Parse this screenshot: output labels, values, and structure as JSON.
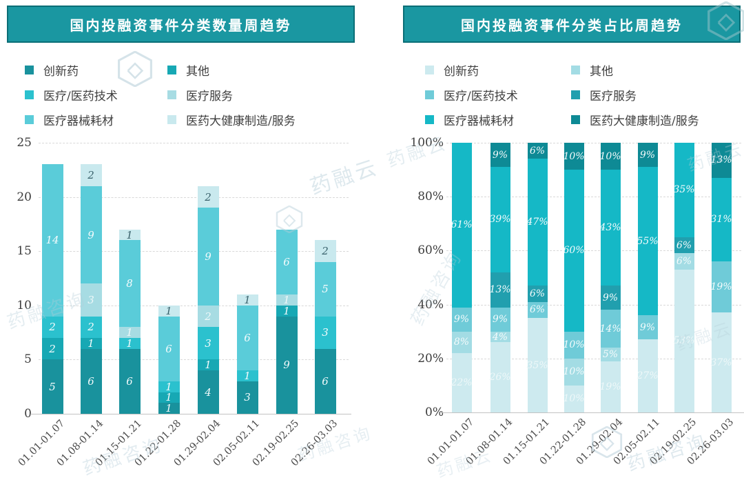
{
  "watermark": {
    "brand": "药融云",
    "consult": "药融咨询"
  },
  "chart_data": [
    {
      "type": "bar",
      "subtype": "stacked",
      "title": "国内投融资事件分类数量周趋势",
      "xlabel": "",
      "ylabel": "",
      "y_max": 25,
      "grid": "dashed-horizontal",
      "legend_position": "top",
      "y_ticks": [
        {
          "label": "0",
          "value": 0
        },
        {
          "label": "5",
          "value": 5
        },
        {
          "label": "10",
          "value": 10
        },
        {
          "label": "15",
          "value": 15
        },
        {
          "label": "20",
          "value": 20
        },
        {
          "label": "25",
          "value": 25
        }
      ],
      "categories": [
        "01.01-01.07",
        "01.08-01.14",
        "01.15-01.21",
        "01.22-01.28",
        "01.29-02.04",
        "02.05-02.11",
        "02.19-02.25",
        "02.26-03.03"
      ],
      "label_suffix": "",
      "series": [
        {
          "name": "创新药",
          "color": "#19929d",
          "label_color": "#f4fbfc",
          "values": [
            5,
            6,
            6,
            1,
            4,
            3,
            9,
            6
          ]
        },
        {
          "name": "其他",
          "color": "#17a8b4",
          "label_color": "#f4fbfc",
          "values": [
            2,
            1,
            0,
            1,
            1,
            0,
            1,
            0
          ]
        },
        {
          "name": "医疗/医药技术",
          "color": "#2bc1ce",
          "label_color": "#f4fbfc",
          "values": [
            2,
            2,
            1,
            1,
            3,
            1,
            0,
            3
          ]
        },
        {
          "name": "医疗服务",
          "color": "#a7dce3",
          "label_color": "#eef8f9",
          "values": [
            0,
            3,
            1,
            0,
            2,
            0,
            1,
            0
          ]
        },
        {
          "name": "医疗器械耗材",
          "color": "#5accd9",
          "label_color": "#f4fbfc",
          "values": [
            14,
            9,
            8,
            6,
            9,
            6,
            6,
            5
          ]
        },
        {
          "name": "医药大健康制造/服务",
          "color": "#c9e9ee",
          "label_color": "#3a626c",
          "values": [
            0,
            2,
            1,
            1,
            2,
            1,
            0,
            2
          ]
        }
      ]
    },
    {
      "type": "bar",
      "subtype": "stacked-percent",
      "title": "国内投融资事件分类占比周趋势",
      "xlabel": "",
      "ylabel": "",
      "y_max": 100,
      "grid": "dashed-horizontal",
      "legend_position": "top",
      "y_ticks": [
        {
          "label": "0%",
          "value": 0
        },
        {
          "label": "20%",
          "value": 20
        },
        {
          "label": "40%",
          "value": 40
        },
        {
          "label": "60%",
          "value": 60
        },
        {
          "label": "80%",
          "value": 80
        },
        {
          "label": "100%",
          "value": 100
        }
      ],
      "categories": [
        "01.01-01.07",
        "01.08-01.14",
        "01.15-01.21",
        "01.22-01.28",
        "01.29-02.04",
        "02.05-02.11",
        "02.19-02.25",
        "02.26-03.03"
      ],
      "label_suffix": "%",
      "series": [
        {
          "name": "创新药",
          "color": "#cdeaef",
          "label_color": "#eef8f9",
          "values": [
            22,
            26,
            35,
            10,
            19,
            27,
            53,
            37
          ]
        },
        {
          "name": "其他",
          "color": "#a3dce4",
          "label_color": "#f4fbfc",
          "values": [
            8,
            4,
            0,
            10,
            5,
            0,
            6,
            0
          ]
        },
        {
          "name": "医疗/医药技术",
          "color": "#6fcbd8",
          "label_color": "#f4fbfc",
          "values": [
            9,
            9,
            6,
            10,
            14,
            9,
            0,
            19
          ]
        },
        {
          "name": "医疗服务",
          "color": "#219fae",
          "label_color": "#f4fbfc",
          "values": [
            0,
            13,
            6,
            0,
            9,
            0,
            6,
            0
          ]
        },
        {
          "name": "医疗器械耗材",
          "color": "#15b8c6",
          "label_color": "#f4fbfc",
          "values": [
            61,
            39,
            47,
            60,
            43,
            55,
            35,
            31
          ]
        },
        {
          "name": "医药大健康制造/服务",
          "color": "#0e8a95",
          "label_color": "#f4fbfc",
          "values": [
            0,
            9,
            6,
            10,
            10,
            9,
            0,
            13
          ]
        }
      ]
    }
  ]
}
